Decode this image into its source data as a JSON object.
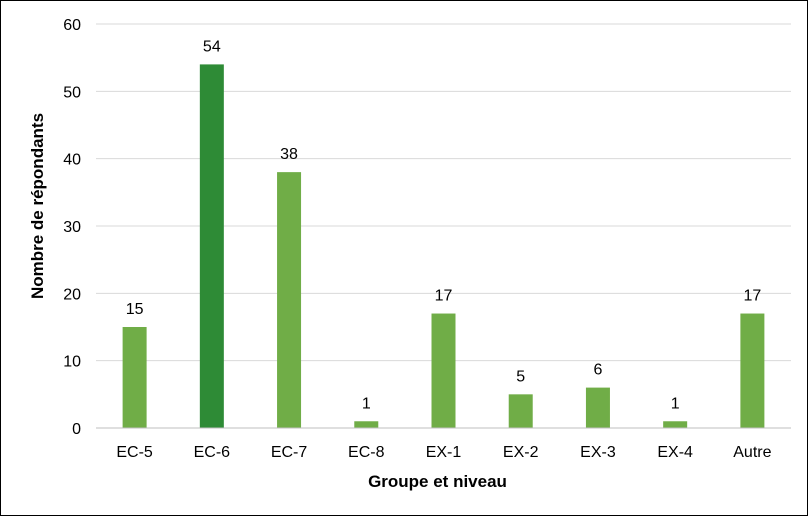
{
  "chart_data": {
    "type": "bar",
    "title": "",
    "xlabel": "Groupe et niveau",
    "ylabel": "Nombre de répondants",
    "ylim": [
      0,
      60
    ],
    "yticks": [
      0,
      10,
      20,
      30,
      40,
      50,
      60
    ],
    "grid": true,
    "legend": "none",
    "categories": [
      "EC-5",
      "EC-6",
      "EC-7",
      "EC-8",
      "EX-1",
      "EX-2",
      "EX-3",
      "EX-4",
      "Autre"
    ],
    "values": [
      15,
      54,
      38,
      1,
      17,
      5,
      6,
      1,
      17
    ],
    "data_labels": [
      "15",
      "54",
      "38",
      "1",
      "17",
      "5",
      "6",
      "1",
      "17"
    ],
    "highlight_category": "EC-6",
    "colors": {
      "bar": "#70ad47",
      "highlight": "#2e8b36",
      "grid": "#d9d9d9",
      "axis": "#bfbfbf"
    }
  }
}
